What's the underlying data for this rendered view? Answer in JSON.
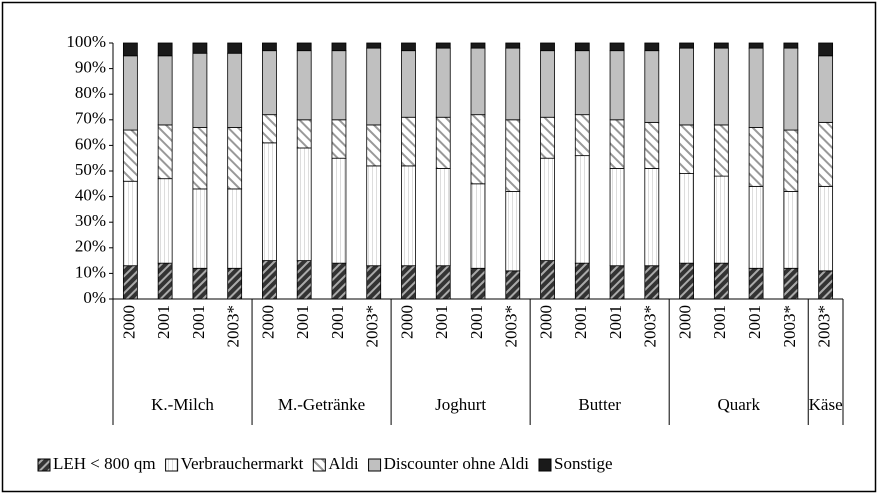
{
  "chart_data": {
    "type": "bar",
    "stacked": true,
    "groups": [
      {
        "name": "K.-Milch",
        "categories": [
          "2000",
          "2001",
          "2001",
          "2003*"
        ]
      },
      {
        "name": "M.-Getränke",
        "categories": [
          "2000",
          "2001",
          "2001",
          "2003*"
        ]
      },
      {
        "name": "Joghurt",
        "categories": [
          "2000",
          "2001",
          "2001",
          "2003*"
        ]
      },
      {
        "name": "Butter",
        "categories": [
          "2000",
          "2001",
          "2001",
          "2003*"
        ]
      },
      {
        "name": "Quark",
        "categories": [
          "2000",
          "2001",
          "2001",
          "2003*"
        ]
      },
      {
        "name": "Käse",
        "categories": [
          "2003*"
        ]
      }
    ],
    "series": [
      {
        "name": "LEH < 800 qm",
        "color": "#333333",
        "values": [
          13,
          14,
          12,
          12,
          15,
          15,
          14,
          13,
          13,
          13,
          12,
          11,
          15,
          14,
          13,
          13,
          14,
          14,
          12,
          12,
          11
        ]
      },
      {
        "name": "Verbrauchermarkt",
        "color": "#ffffff",
        "values": [
          33,
          33,
          31,
          31,
          46,
          44,
          41,
          39,
          39,
          38,
          33,
          31,
          40,
          42,
          38,
          38,
          35,
          34,
          32,
          30,
          33
        ]
      },
      {
        "name": "Aldi",
        "color": "#ffffff",
        "values": [
          20,
          21,
          24,
          24,
          11,
          11,
          15,
          16,
          19,
          20,
          27,
          28,
          16,
          16,
          19,
          18,
          19,
          20,
          23,
          24,
          25
        ]
      },
      {
        "name": "Discounter ohne Aldi",
        "color": "#c0c0c0",
        "values": [
          29,
          27,
          29,
          29,
          25,
          27,
          27,
          30,
          26,
          27,
          26,
          28,
          26,
          25,
          27,
          28,
          30,
          30,
          31,
          32,
          26
        ]
      },
      {
        "name": "Sonstige",
        "color": "#1a1a1a",
        "values": [
          5,
          5,
          4,
          4,
          3,
          3,
          3,
          2,
          3,
          2,
          2,
          2,
          3,
          3,
          3,
          3,
          2,
          2,
          2,
          2,
          5
        ]
      }
    ],
    "ylim": [
      0,
      100
    ],
    "yticks": [
      {
        "value": 0,
        "label": "0%"
      },
      {
        "value": 10,
        "label": "10%"
      },
      {
        "value": 20,
        "label": "20%"
      },
      {
        "value": 30,
        "label": "30%"
      },
      {
        "value": 40,
        "label": "40%"
      },
      {
        "value": 50,
        "label": "50%"
      },
      {
        "value": 60,
        "label": "60%"
      },
      {
        "value": 70,
        "label": "70%"
      },
      {
        "value": 80,
        "label": "80%"
      },
      {
        "value": 90,
        "label": "90%"
      },
      {
        "value": 100,
        "label": "100%"
      }
    ],
    "legend": "bottom"
  }
}
